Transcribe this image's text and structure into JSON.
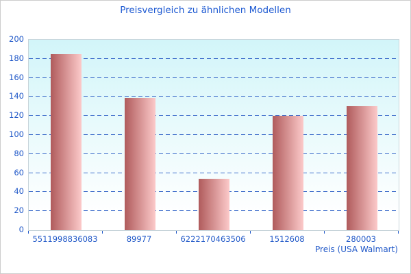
{
  "chart_data": {
    "type": "bar",
    "title": "Preisvergleich zu ähnlichen Modellen",
    "xlabel": "Preis (USA Walmart)",
    "ylabel": "",
    "categories": [
      "5511998836083",
      "89977",
      "6222170463506",
      "1512608",
      "280003"
    ],
    "values": [
      185,
      139,
      54,
      120,
      130
    ],
    "ylim": [
      0,
      200
    ],
    "ytick_step": 20,
    "grid": "horizontal-dashed",
    "legend": null,
    "colors": {
      "bar_gradient_left": "#b05b5c",
      "bar_gradient_right": "#fccaca",
      "plot_bg_top": "#d2f5f9",
      "plot_bg_bottom": "#ffffff",
      "gridline": "#3c6bca",
      "axis_text": "#2058c8",
      "title_text": "#1e5ad2",
      "plot_border": "#c7d4da"
    }
  }
}
